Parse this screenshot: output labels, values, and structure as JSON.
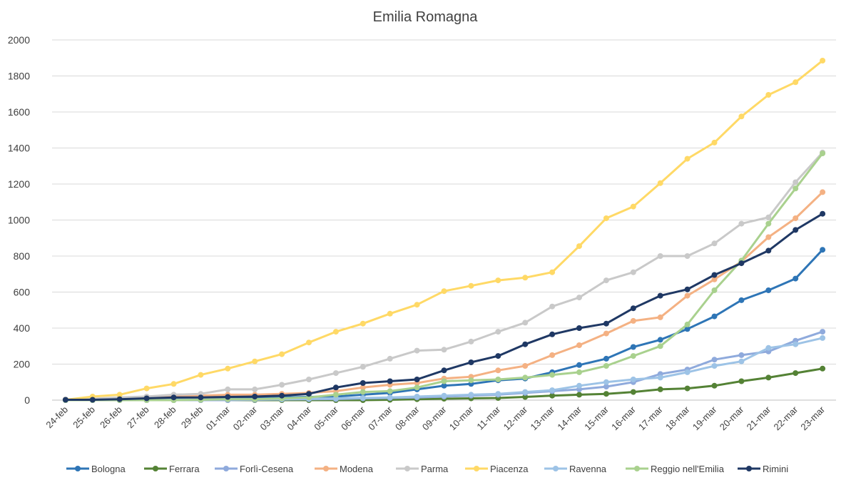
{
  "chart_data": {
    "type": "line",
    "title": "Emilia Romagna",
    "xlabel": "",
    "ylabel": "",
    "ylim": [
      0,
      2000
    ],
    "yticks": [
      0,
      200,
      400,
      600,
      800,
      1000,
      1200,
      1400,
      1600,
      1800,
      2000
    ],
    "grid": true,
    "legend_position": "bottom",
    "categories": [
      "24-feb",
      "25-feb",
      "26-feb",
      "27-feb",
      "28-feb",
      "29-feb",
      "01-mar",
      "02-mar",
      "03-mar",
      "04-mar",
      "05-mar",
      "06-mar",
      "07-mar",
      "08-mar",
      "09-mar",
      "10-mar",
      "11-mar",
      "12-mar",
      "13-mar",
      "14-mar",
      "15-mar",
      "16-mar",
      "17-mar",
      "18-mar",
      "19-mar",
      "20-mar",
      "21-mar",
      "22-mar",
      "23-mar"
    ],
    "series": [
      {
        "name": "Bologna",
        "color": "#2e75b6",
        "values": [
          2,
          2,
          2,
          5,
          8,
          10,
          12,
          12,
          15,
          18,
          20,
          30,
          40,
          60,
          80,
          90,
          110,
          120,
          155,
          195,
          230,
          295,
          335,
          395,
          465,
          555,
          610,
          675,
          835
        ]
      },
      {
        "name": "Ferrara",
        "color": "#548235",
        "values": [
          0,
          0,
          0,
          0,
          0,
          0,
          0,
          0,
          0,
          0,
          0,
          0,
          2,
          5,
          8,
          10,
          12,
          18,
          25,
          30,
          35,
          45,
          60,
          65,
          80,
          105,
          125,
          150,
          175
        ]
      },
      {
        "name": "Forlì-Cesena",
        "color": "#8faadc",
        "values": [
          0,
          0,
          0,
          0,
          0,
          0,
          0,
          2,
          4,
          5,
          6,
          10,
          12,
          15,
          20,
          25,
          30,
          40,
          50,
          60,
          75,
          100,
          145,
          170,
          225,
          250,
          270,
          330,
          380
        ]
      },
      {
        "name": "Modena",
        "color": "#f4b183",
        "values": [
          2,
          5,
          10,
          15,
          20,
          25,
          30,
          30,
          35,
          40,
          50,
          70,
          85,
          95,
          120,
          130,
          165,
          190,
          250,
          305,
          370,
          440,
          460,
          580,
          670,
          770,
          905,
          1010,
          1155
        ]
      },
      {
        "name": "Parma",
        "color": "#c9c9c9",
        "values": [
          2,
          8,
          15,
          20,
          30,
          35,
          60,
          60,
          85,
          115,
          150,
          185,
          230,
          275,
          280,
          325,
          380,
          430,
          520,
          570,
          665,
          710,
          800,
          800,
          870,
          980,
          1015,
          1210,
          1375
        ]
      },
      {
        "name": "Piacenza",
        "color": "#ffd966",
        "values": [
          2,
          20,
          30,
          65,
          90,
          140,
          175,
          215,
          255,
          320,
          380,
          425,
          480,
          530,
          605,
          635,
          665,
          680,
          710,
          855,
          1010,
          1075,
          1205,
          1340,
          1430,
          1575,
          1695,
          1765,
          1885
        ]
      },
      {
        "name": "Ravenna",
        "color": "#9dc3e6",
        "values": [
          0,
          0,
          0,
          0,
          2,
          5,
          5,
          5,
          5,
          8,
          10,
          12,
          15,
          20,
          25,
          30,
          35,
          45,
          55,
          80,
          100,
          115,
          125,
          155,
          190,
          215,
          290,
          310,
          345
        ]
      },
      {
        "name": "Reggio nell'Emilia",
        "color": "#a9d18e",
        "values": [
          0,
          0,
          0,
          0,
          0,
          2,
          5,
          5,
          10,
          15,
          30,
          45,
          50,
          70,
          105,
          110,
          115,
          125,
          140,
          155,
          190,
          245,
          300,
          420,
          610,
          775,
          980,
          1175,
          1370
        ]
      },
      {
        "name": "Rimini",
        "color": "#1f3864",
        "values": [
          2,
          2,
          5,
          10,
          15,
          15,
          18,
          20,
          25,
          35,
          70,
          95,
          105,
          115,
          165,
          210,
          245,
          310,
          365,
          400,
          425,
          510,
          580,
          615,
          695,
          760,
          830,
          945,
          1035
        ]
      }
    ]
  }
}
